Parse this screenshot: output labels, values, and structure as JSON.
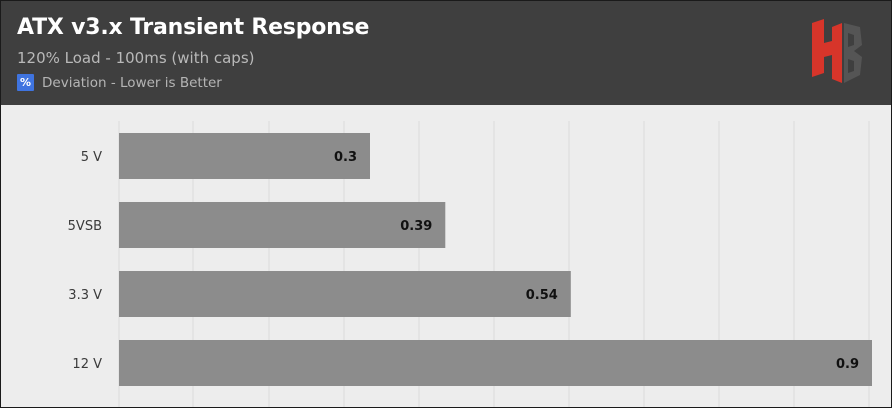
{
  "header": {
    "title": "ATX v3.x Transient Response",
    "subtitle": "120% Load - 100ms (with caps)",
    "legend_icon": "%",
    "legend_label": "Deviation - Lower is Better",
    "logo": "hb-logo-icon"
  },
  "colors": {
    "header_bg": "#3f3f3f",
    "plot_bg": "#ededed",
    "bar": "#8c8c8c",
    "legend_swatch": "#3f74e0",
    "logo_red": "#d7352a",
    "logo_gray": "#555555"
  },
  "chart_data": {
    "type": "bar",
    "orientation": "horizontal",
    "categories": [
      "5 V",
      "5VSB",
      "3.3 V",
      "12 V"
    ],
    "series": [
      {
        "name": "Deviation - Lower is Better",
        "values": [
          0.3,
          0.39,
          0.54,
          0.9
        ]
      }
    ],
    "data_labels": [
      "0.3",
      "0.39",
      "0.54",
      "0.9"
    ],
    "xlim": [
      0,
      0.9
    ],
    "grid": true,
    "legend_position": "top-left"
  }
}
